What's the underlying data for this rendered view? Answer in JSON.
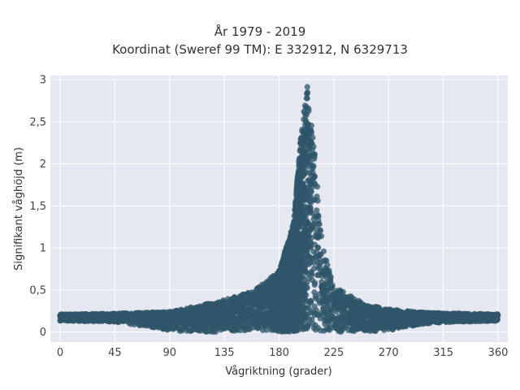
{
  "chart_data": {
    "type": "scatter",
    "title_lines": [
      "År 1979 - 2019",
      "Koordinat (Sweref 99 TM): E 332912, N 6329713"
    ],
    "xlabel": "Vågriktning (grader)",
    "ylabel": "Signifikant våghöjd (m)",
    "xlim": [
      -8,
      368
    ],
    "ylim": [
      -0.12,
      3.05
    ],
    "x_ticks": [
      0,
      45,
      90,
      135,
      180,
      225,
      270,
      315,
      360
    ],
    "x_tick_labels": [
      "0",
      "45",
      "90",
      "135",
      "180",
      "225",
      "270",
      "315",
      "360"
    ],
    "y_ticks": [
      0,
      0.5,
      1,
      1.5,
      2,
      2.5,
      3
    ],
    "y_tick_labels": [
      "0",
      "0,5",
      "1",
      "1,5",
      "2",
      "2,5",
      "3"
    ],
    "grid": true,
    "marker_color": "#2f5569",
    "plot_bg": "#e5e8f0",
    "envelope": [
      {
        "x": 0,
        "lo": 0.13,
        "hi": 0.21
      },
      {
        "x": 45,
        "lo": 0.12,
        "hi": 0.22
      },
      {
        "x": 90,
        "lo": 0.02,
        "hi": 0.24
      },
      {
        "x": 110,
        "lo": 0.0,
        "hi": 0.3
      },
      {
        "x": 135,
        "lo": 0.0,
        "hi": 0.38
      },
      {
        "x": 160,
        "lo": 0.0,
        "hi": 0.5
      },
      {
        "x": 180,
        "lo": 0.0,
        "hi": 0.72
      },
      {
        "x": 192,
        "lo": 0.0,
        "hi": 1.3
      },
      {
        "x": 198,
        "lo": 0.0,
        "hi": 2.35
      },
      {
        "x": 203,
        "lo": 0.0,
        "hi": 2.95
      },
      {
        "x": 208,
        "lo": 0.0,
        "hi": 2.4
      },
      {
        "x": 215,
        "lo": 0.0,
        "hi": 1.1
      },
      {
        "x": 225,
        "lo": 0.0,
        "hi": 0.55
      },
      {
        "x": 250,
        "lo": 0.0,
        "hi": 0.33
      },
      {
        "x": 270,
        "lo": 0.02,
        "hi": 0.27
      },
      {
        "x": 300,
        "lo": 0.1,
        "hi": 0.23
      },
      {
        "x": 330,
        "lo": 0.12,
        "hi": 0.22
      },
      {
        "x": 360,
        "lo": 0.13,
        "hi": 0.21
      }
    ]
  }
}
